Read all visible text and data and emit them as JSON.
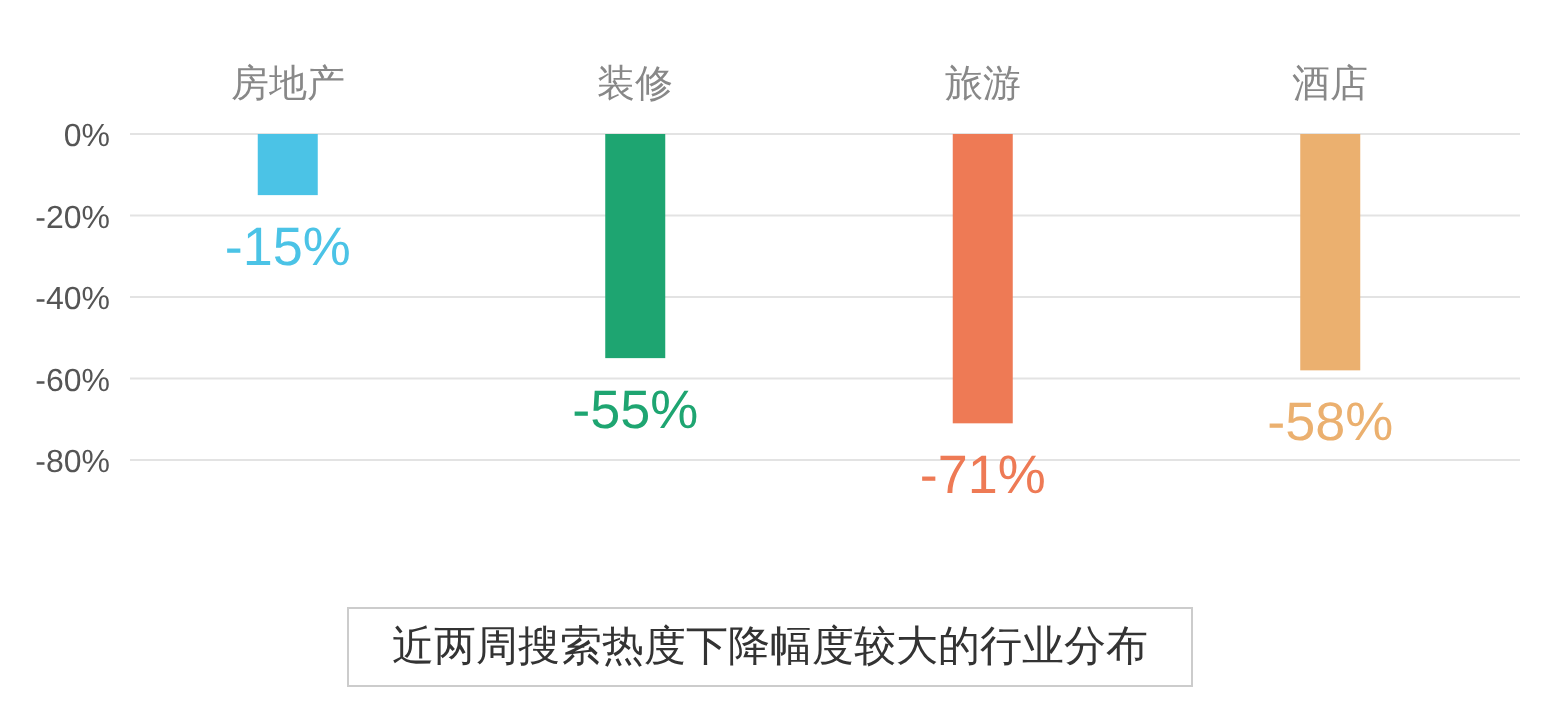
{
  "chart_data": {
    "type": "bar",
    "title": "近两周搜索热度下降幅度较大的行业分布",
    "categories": [
      "房地产",
      "装修",
      "旅游",
      "酒店"
    ],
    "values": [
      -15,
      -55,
      -71,
      -58
    ],
    "colors": [
      "#4bc3e6",
      "#1ea571",
      "#ee7a55",
      "#ebb06f"
    ],
    "value_labels": [
      "-15%",
      "-55%",
      "-71%",
      "-58%"
    ],
    "ylim": [
      -80,
      0
    ],
    "yticks": [
      {
        "value": 0,
        "label": "0%"
      },
      {
        "value": -20,
        "label": "-20%"
      },
      {
        "value": -40,
        "label": "-40%"
      },
      {
        "value": -60,
        "label": "-60%"
      },
      {
        "value": -80,
        "label": "-80%"
      }
    ],
    "grid": "y"
  }
}
